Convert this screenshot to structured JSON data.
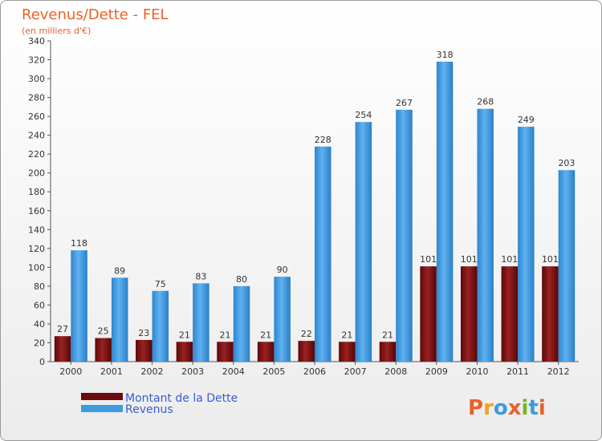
{
  "chart_data": {
    "type": "bar",
    "title": "Revenus/Dette - FEL",
    "subtitle": "(en milliers d'€)",
    "categories": [
      "2000",
      "2001",
      "2002",
      "2003",
      "2004",
      "2005",
      "2006",
      "2007",
      "2008",
      "2009",
      "2010",
      "2011",
      "2012"
    ],
    "series": [
      {
        "name": "Montant de la Dette",
        "values": [
          27,
          25,
          23,
          21,
          21,
          21,
          22,
          21,
          21,
          101,
          101,
          101,
          101
        ],
        "color": "#7a1010"
      },
      {
        "name": "Revenus",
        "values": [
          118,
          89,
          75,
          83,
          80,
          90,
          228,
          254,
          267,
          318,
          268,
          249,
          203
        ],
        "color": "#3d9be0"
      }
    ],
    "ylim": [
      0,
      340
    ],
    "ytick_step": 20,
    "grid": false,
    "legend_position": "bottom-left",
    "title_color": "#e8622a",
    "legend_text_color": "#3b5bd6"
  },
  "logo": {
    "text": "Proxiti"
  }
}
